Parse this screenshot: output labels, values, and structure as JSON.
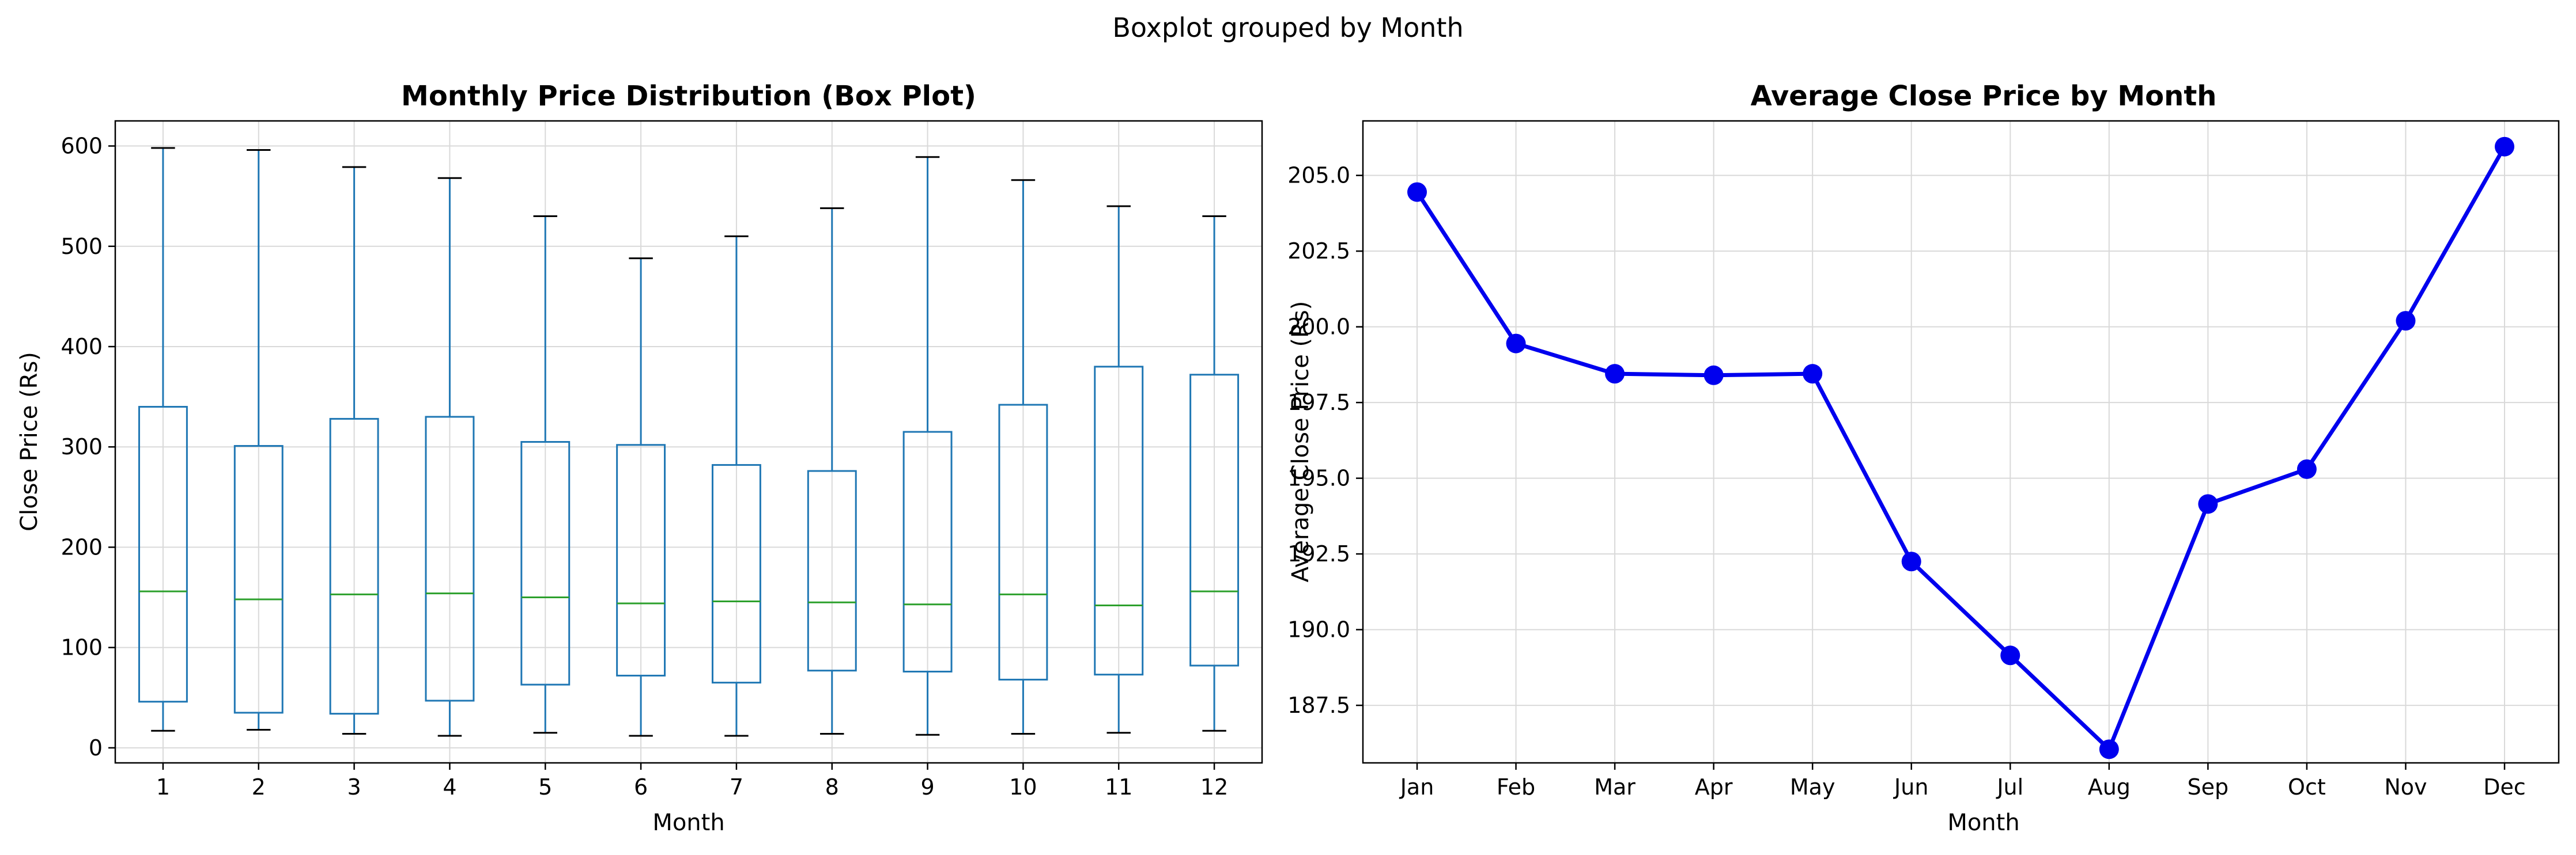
{
  "suptitle": "Boxplot grouped by Month",
  "chart_data": [
    {
      "type": "box",
      "title": "Monthly Price Distribution (Box Plot)",
      "xlabel": "Month",
      "ylabel": "Close Price (Rs)",
      "ylim": [
        -15,
        625
      ],
      "yticks": [
        0,
        100,
        200,
        300,
        400,
        500,
        600
      ],
      "grid": true,
      "colors": {
        "box": "#1f77b4",
        "median": "#2ca02c",
        "cap": "#000000"
      },
      "categories": [
        "1",
        "2",
        "3",
        "4",
        "5",
        "6",
        "7",
        "8",
        "9",
        "10",
        "11",
        "12"
      ],
      "boxes": [
        {
          "min": 17,
          "q1": 46,
          "median": 156,
          "q3": 340,
          "max": 598
        },
        {
          "min": 18,
          "q1": 35,
          "median": 148,
          "q3": 301,
          "max": 596
        },
        {
          "min": 14,
          "q1": 34,
          "median": 153,
          "q3": 328,
          "max": 579
        },
        {
          "min": 12,
          "q1": 47,
          "median": 154,
          "q3": 330,
          "max": 568
        },
        {
          "min": 15,
          "q1": 63,
          "median": 150,
          "q3": 305,
          "max": 530
        },
        {
          "min": 12,
          "q1": 72,
          "median": 144,
          "q3": 302,
          "max": 488
        },
        {
          "min": 12,
          "q1": 65,
          "median": 146,
          "q3": 282,
          "max": 510
        },
        {
          "min": 14,
          "q1": 77,
          "median": 145,
          "q3": 276,
          "max": 538
        },
        {
          "min": 13,
          "q1": 76,
          "median": 143,
          "q3": 315,
          "max": 589
        },
        {
          "min": 14,
          "q1": 68,
          "median": 153,
          "q3": 342,
          "max": 566
        },
        {
          "min": 15,
          "q1": 73,
          "median": 142,
          "q3": 380,
          "max": 540
        },
        {
          "min": 17,
          "q1": 82,
          "median": 156,
          "q3": 372,
          "max": 530
        }
      ]
    },
    {
      "type": "line",
      "title": "Average Close Price by Month",
      "xlabel": "Month",
      "ylabel": "Average Close Price (Rs)",
      "ylim": [
        185.6,
        206.8
      ],
      "yticks": [
        187.5,
        190.0,
        192.5,
        195.0,
        197.5,
        200.0,
        202.5,
        205.0
      ],
      "grid": true,
      "colors": {
        "line": "#0000ee",
        "marker": "#0000ee"
      },
      "categories": [
        "Jan",
        "Feb",
        "Mar",
        "Apr",
        "May",
        "Jun",
        "Jul",
        "Aug",
        "Sep",
        "Oct",
        "Nov",
        "Dec"
      ],
      "values": [
        204.45,
        199.45,
        198.45,
        198.4,
        198.45,
        192.25,
        189.15,
        186.05,
        194.15,
        195.3,
        200.2,
        205.95
      ]
    }
  ]
}
